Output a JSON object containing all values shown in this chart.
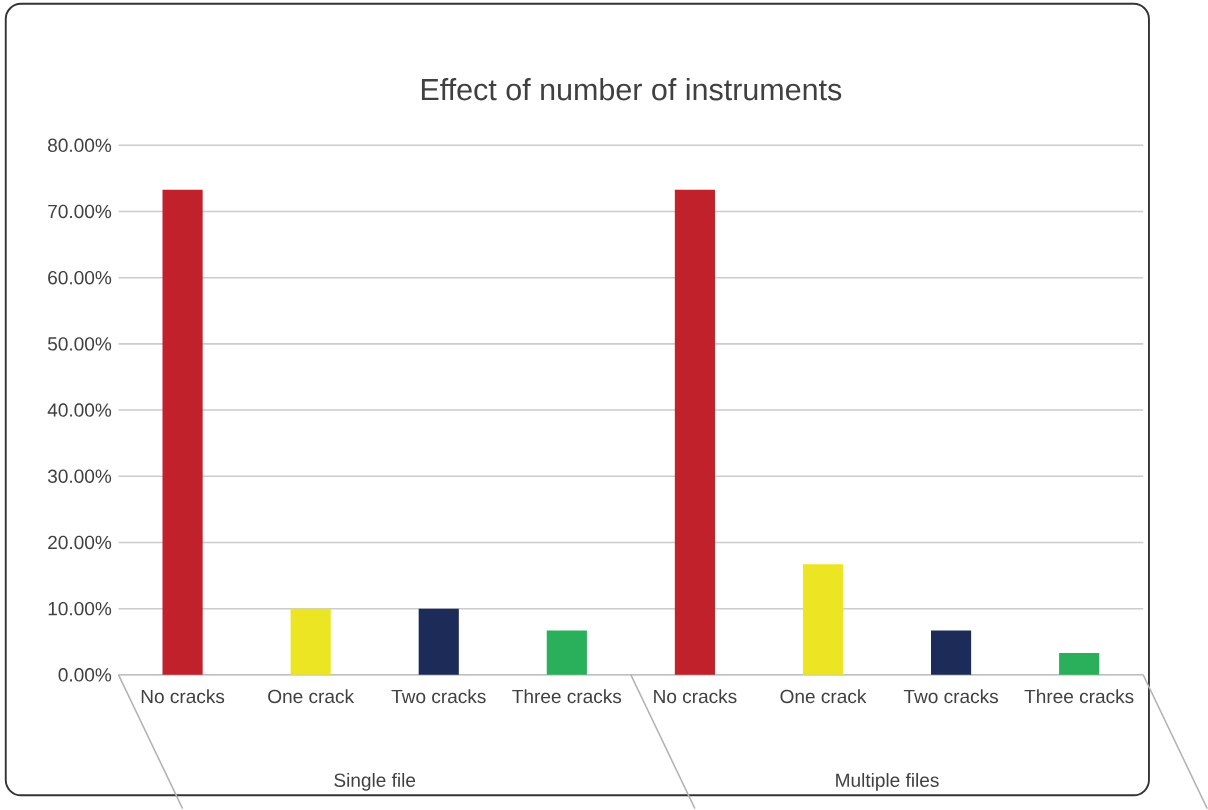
{
  "chart_data": {
    "type": "bar",
    "title": "Effect of number of instruments",
    "categories": [
      "No cracks",
      "One crack",
      "Two cracks",
      "Three cracks",
      "No cracks",
      "One crack",
      "Two cracks",
      "Three cracks"
    ],
    "values": [
      73.3,
      10,
      10,
      6.7,
      73.3,
      16.7,
      6.7,
      3.3
    ],
    "colors": [
      "#c0212a",
      "#ece524",
      "#1c2b58",
      "#2aaf5a",
      "#c0212a",
      "#ece524",
      "#1c2b58",
      "#2aaf5a"
    ],
    "ylim": [
      0,
      80
    ],
    "yticks": [
      {
        "value": 0,
        "label": "0.00%"
      },
      {
        "value": 10,
        "label": "10.00%"
      },
      {
        "value": 20,
        "label": "20.00%"
      },
      {
        "value": 30,
        "label": "30.00%"
      },
      {
        "value": 40,
        "label": "40.00%"
      },
      {
        "value": 50,
        "label": "50.00%"
      },
      {
        "value": 60,
        "label": "60.00%"
      },
      {
        "value": 70,
        "label": "70.00%"
      },
      {
        "value": 80,
        "label": "80.00%"
      }
    ],
    "grid": "y",
    "annotations": [
      "Single file",
      "Multiple files"
    ]
  }
}
